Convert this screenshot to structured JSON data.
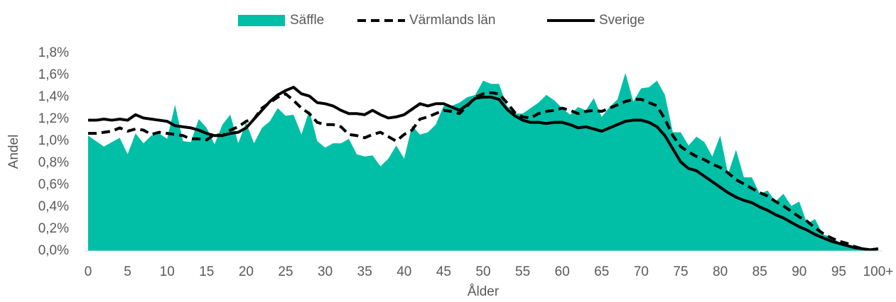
{
  "chart_data": {
    "type": "area_line",
    "xlabel": "Ålder",
    "ylabel": "Andel",
    "categories": [
      0,
      null,
      null,
      null,
      null,
      5,
      null,
      null,
      null,
      null,
      10,
      null,
      null,
      null,
      null,
      15,
      null,
      null,
      null,
      null,
      20,
      null,
      null,
      null,
      null,
      25,
      null,
      null,
      null,
      null,
      30,
      null,
      null,
      null,
      null,
      35,
      null,
      null,
      null,
      null,
      40,
      null,
      null,
      null,
      null,
      45,
      null,
      null,
      null,
      null,
      50,
      null,
      null,
      null,
      null,
      55,
      null,
      null,
      null,
      null,
      60,
      null,
      null,
      null,
      null,
      65,
      null,
      null,
      null,
      null,
      70,
      null,
      null,
      null,
      null,
      75,
      null,
      null,
      null,
      null,
      80,
      null,
      null,
      null,
      null,
      85,
      null,
      null,
      null,
      null,
      90,
      null,
      null,
      null,
      null,
      95,
      null,
      null,
      null,
      null,
      "100+"
    ],
    "series": [
      {
        "name": "Säffle",
        "kind": "area",
        "color": "#00bfa6",
        "values": [
          1.05,
          1.0,
          0.95,
          0.99,
          1.03,
          0.88,
          1.07,
          0.98,
          1.05,
          1.07,
          1.02,
          1.33,
          1.0,
          0.99,
          1.2,
          1.12,
          0.97,
          1.15,
          1.24,
          0.98,
          1.17,
          0.98,
          1.12,
          1.18,
          1.3,
          1.23,
          1.24,
          1.06,
          1.28,
          1.0,
          0.94,
          0.98,
          0.98,
          1.02,
          0.88,
          0.86,
          0.87,
          0.77,
          0.84,
          0.96,
          0.84,
          1.14,
          1.06,
          1.08,
          1.15,
          1.32,
          1.32,
          1.35,
          1.4,
          1.42,
          1.55,
          1.52,
          1.52,
          1.32,
          1.25,
          1.25,
          1.3,
          1.35,
          1.42,
          1.37,
          1.3,
          1.24,
          1.31,
          1.28,
          1.39,
          1.22,
          1.31,
          1.38,
          1.62,
          1.36,
          1.48,
          1.49,
          1.55,
          1.42,
          1.08,
          1.08,
          0.96,
          1.04,
          0.99,
          0.86,
          1.05,
          0.7,
          0.92,
          0.67,
          0.67,
          0.52,
          0.55,
          0.45,
          0.52,
          0.41,
          0.45,
          0.25,
          0.29,
          0.15,
          0.13,
          0.08,
          0.06,
          0.03,
          0.02,
          0.01,
          0.02
        ]
      },
      {
        "name": "Värmlands län",
        "kind": "dashed",
        "color": "#000000",
        "values": [
          1.07,
          1.07,
          1.08,
          1.09,
          1.12,
          1.09,
          1.11,
          1.1,
          1.06,
          1.08,
          1.07,
          1.06,
          1.05,
          1.02,
          1.02,
          1.01,
          1.06,
          1.05,
          1.1,
          1.13,
          1.18,
          1.2,
          1.3,
          1.35,
          1.4,
          1.43,
          1.37,
          1.3,
          1.25,
          1.17,
          1.15,
          1.15,
          1.13,
          1.06,
          1.05,
          1.03,
          1.06,
          1.08,
          1.04,
          1.0,
          1.06,
          1.1,
          1.2,
          1.22,
          1.25,
          1.28,
          1.27,
          1.25,
          1.32,
          1.4,
          1.43,
          1.44,
          1.43,
          1.35,
          1.26,
          1.22,
          1.21,
          1.25,
          1.27,
          1.28,
          1.3,
          1.28,
          1.25,
          1.27,
          1.28,
          1.27,
          1.3,
          1.33,
          1.36,
          1.38,
          1.38,
          1.35,
          1.32,
          1.2,
          1.05,
          0.95,
          0.9,
          0.86,
          0.83,
          0.79,
          0.76,
          0.71,
          0.65,
          0.61,
          0.57,
          0.53,
          0.5,
          0.45,
          0.41,
          0.36,
          0.31,
          0.27,
          0.21,
          0.16,
          0.12,
          0.09,
          0.07,
          0.04,
          0.02,
          0.01,
          0.02
        ]
      },
      {
        "name": "Sverige",
        "kind": "solid",
        "color": "#000000",
        "values": [
          1.19,
          1.19,
          1.2,
          1.19,
          1.2,
          1.19,
          1.24,
          1.21,
          1.2,
          1.19,
          1.18,
          1.14,
          1.13,
          1.12,
          1.1,
          1.07,
          1.05,
          1.05,
          1.07,
          1.08,
          1.12,
          1.2,
          1.28,
          1.36,
          1.42,
          1.46,
          1.49,
          1.43,
          1.41,
          1.35,
          1.34,
          1.32,
          1.28,
          1.25,
          1.25,
          1.24,
          1.28,
          1.24,
          1.21,
          1.22,
          1.24,
          1.29,
          1.34,
          1.32,
          1.34,
          1.34,
          1.31,
          1.28,
          1.33,
          1.39,
          1.4,
          1.4,
          1.38,
          1.29,
          1.23,
          1.19,
          1.17,
          1.17,
          1.16,
          1.17,
          1.17,
          1.15,
          1.12,
          1.13,
          1.11,
          1.09,
          1.12,
          1.15,
          1.18,
          1.19,
          1.19,
          1.17,
          1.13,
          1.05,
          0.93,
          0.81,
          0.75,
          0.73,
          0.68,
          0.63,
          0.58,
          0.53,
          0.49,
          0.46,
          0.44,
          0.4,
          0.37,
          0.33,
          0.3,
          0.26,
          0.22,
          0.19,
          0.15,
          0.12,
          0.09,
          0.07,
          0.05,
          0.03,
          0.02,
          0.01,
          0.02
        ]
      }
    ],
    "ylim": [
      0,
      1.8
    ],
    "yticks": [
      {
        "value": 0,
        "label": "0,0%"
      },
      {
        "value": 0.2,
        "label": "0,2%"
      },
      {
        "value": 0.4,
        "label": "0,4%"
      },
      {
        "value": 0.6,
        "label": "0,6%"
      },
      {
        "value": 0.8,
        "label": "0,8%"
      },
      {
        "value": 1.0,
        "label": "1,0%"
      },
      {
        "value": 1.2,
        "label": "1,2%"
      },
      {
        "value": 1.4,
        "label": "1,4%"
      },
      {
        "value": 1.6,
        "label": "1,6%"
      },
      {
        "value": 1.8,
        "label": "1,8%"
      }
    ],
    "grid": false,
    "legend": "top"
  }
}
